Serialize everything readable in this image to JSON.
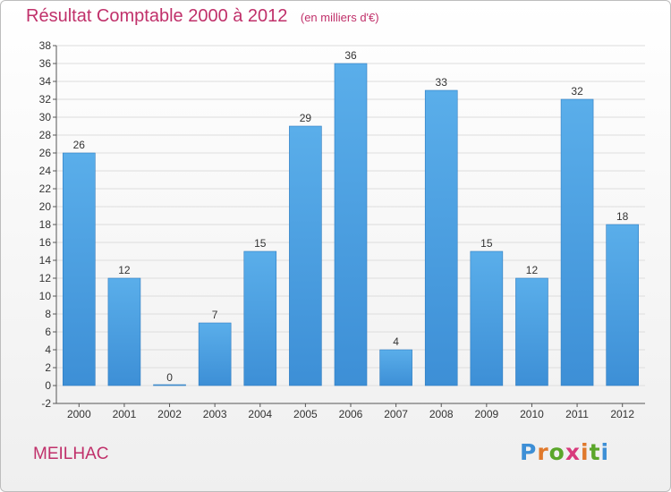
{
  "chart_data": {
    "type": "bar",
    "title": "Résultat Comptable 2000 à 2012",
    "subtitle": "(en milliers d'€)",
    "categories": [
      "2000",
      "2001",
      "2002",
      "2003",
      "2004",
      "2005",
      "2006",
      "2007",
      "2008",
      "2009",
      "2010",
      "2011",
      "2012"
    ],
    "values": [
      26,
      12,
      0,
      7,
      15,
      29,
      36,
      4,
      33,
      15,
      12,
      32,
      18
    ],
    "ylim": [
      -2,
      38
    ],
    "yticks": [
      -2,
      0,
      2,
      4,
      6,
      8,
      10,
      12,
      14,
      16,
      18,
      20,
      22,
      24,
      26,
      28,
      30,
      32,
      34,
      36,
      38
    ],
    "xlabel": "",
    "ylabel": "",
    "grid": true,
    "bar_color": "#3d8fd6",
    "bar_color_light": "#5aaeea",
    "grid_color": "#dddddd"
  },
  "commune": "MEILHAC",
  "logo": {
    "text": "Proxiti",
    "colors": [
      "#3d8fd6",
      "#e0792b",
      "#5aa62a",
      "#d83a7c",
      "#e0792b",
      "#5aa62a",
      "#3d8fd6"
    ]
  }
}
